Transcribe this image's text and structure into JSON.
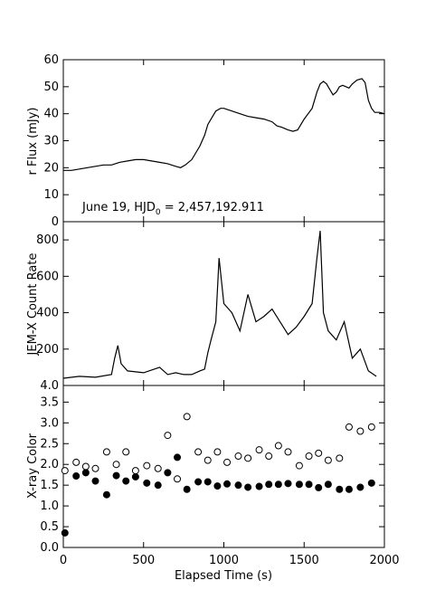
{
  "figure": {
    "x_axis_label": "Elapsed Time (s)",
    "x_ticks": [
      "0",
      "500",
      "1000",
      "1500",
      "2000"
    ],
    "x_range": [
      0,
      2000
    ]
  },
  "chart_data": [
    {
      "type": "line",
      "panel": "top",
      "ylabel": "r Flux (mJy)",
      "ylim": [
        0,
        60
      ],
      "y_ticks": [
        "0",
        "10",
        "20",
        "30",
        "40",
        "50",
        "60"
      ],
      "annotation": {
        "prefix": "June 19, HJD",
        "subscript": "0",
        "suffix": " = 2,457,192.911"
      },
      "series": [
        {
          "x": [
            0,
            50,
            100,
            150,
            200,
            250,
            300,
            350,
            400,
            450,
            500,
            550,
            600,
            650,
            700,
            730,
            760,
            800,
            850,
            880,
            900,
            930,
            950,
            980,
            1000,
            1050,
            1100,
            1150,
            1200,
            1250,
            1300,
            1330,
            1360,
            1400,
            1430,
            1460,
            1500,
            1550,
            1580,
            1600,
            1620,
            1640,
            1660,
            1680,
            1700,
            1720,
            1740,
            1760,
            1780,
            1800,
            1830,
            1860,
            1880,
            1900,
            1920,
            1940,
            1970,
            2000
          ],
          "y": [
            19,
            19,
            19.5,
            20,
            20.5,
            21,
            21,
            22,
            22.5,
            23,
            23,
            22.5,
            22,
            21.5,
            20.5,
            20,
            21,
            23,
            28,
            32,
            36,
            39,
            41,
            42,
            42,
            41,
            40,
            39,
            38.5,
            38,
            37,
            35.5,
            35,
            34,
            33.5,
            34,
            38,
            42,
            48,
            51,
            52,
            51,
            49,
            47,
            48,
            50,
            50.5,
            50,
            49.5,
            51,
            52.5,
            53,
            51.5,
            45,
            42,
            40.5,
            40.5,
            40
          ]
        }
      ]
    },
    {
      "type": "line",
      "panel": "middle",
      "ylabel": "JEM-X Count Rate",
      "ylim": [
        0,
        900
      ],
      "y_ticks": [
        "4.0",
        "200",
        "400",
        "600",
        "800"
      ],
      "series": [
        {
          "x": [
            0,
            100,
            200,
            300,
            320,
            340,
            360,
            400,
            500,
            600,
            650,
            700,
            750,
            800,
            850,
            880,
            900,
            920,
            950,
            970,
            1000,
            1050,
            1100,
            1150,
            1200,
            1250,
            1300,
            1350,
            1400,
            1450,
            1500,
            1550,
            1580,
            1600,
            1620,
            1650,
            1700,
            1750,
            1800,
            1850,
            1900,
            1950
          ],
          "y": [
            40,
            50,
            45,
            60,
            150,
            220,
            120,
            80,
            70,
            100,
            60,
            70,
            60,
            60,
            80,
            90,
            180,
            250,
            350,
            700,
            450,
            400,
            300,
            500,
            350,
            380,
            420,
            350,
            280,
            320,
            380,
            450,
            700,
            850,
            400,
            300,
            250,
            350,
            150,
            200,
            80,
            50
          ]
        }
      ]
    },
    {
      "type": "scatter",
      "panel": "bottom",
      "ylabel": "X-ray Color",
      "ylim": [
        0,
        3.9
      ],
      "y_ticks": [
        "0.0",
        "0.5",
        "1.0",
        "1.5",
        "2.0",
        "2.5",
        "3.0",
        "3.5"
      ],
      "series": [
        {
          "marker": "open",
          "x": [
            10,
            80,
            140,
            200,
            270,
            330,
            390,
            450,
            520,
            590,
            650,
            710,
            770,
            840,
            900,
            960,
            1020,
            1090,
            1150,
            1220,
            1280,
            1340,
            1400,
            1470,
            1530,
            1590,
            1650,
            1720,
            1780,
            1850,
            1920
          ],
          "y": [
            1.85,
            2.05,
            1.95,
            1.9,
            2.3,
            2.0,
            2.3,
            1.85,
            1.97,
            1.9,
            2.7,
            1.65,
            3.15,
            2.3,
            2.1,
            2.3,
            2.05,
            2.2,
            2.15,
            2.35,
            2.2,
            2.45,
            2.3,
            1.97,
            2.2,
            2.27,
            2.1,
            2.15,
            2.9,
            2.8,
            2.9
          ]
        },
        {
          "marker": "filled",
          "x": [
            10,
            80,
            140,
            200,
            270,
            330,
            390,
            450,
            520,
            590,
            650,
            710,
            770,
            840,
            900,
            960,
            1020,
            1090,
            1150,
            1220,
            1280,
            1340,
            1400,
            1470,
            1530,
            1590,
            1650,
            1720,
            1780,
            1850,
            1920
          ],
          "y": [
            0.35,
            1.72,
            1.8,
            1.6,
            1.27,
            1.73,
            1.6,
            1.7,
            1.55,
            1.5,
            1.8,
            2.17,
            1.4,
            1.58,
            1.58,
            1.48,
            1.53,
            1.5,
            1.45,
            1.47,
            1.52,
            1.52,
            1.54,
            1.52,
            1.52,
            1.44,
            1.52,
            1.4,
            1.4,
            1.45,
            1.55
          ]
        }
      ]
    }
  ]
}
